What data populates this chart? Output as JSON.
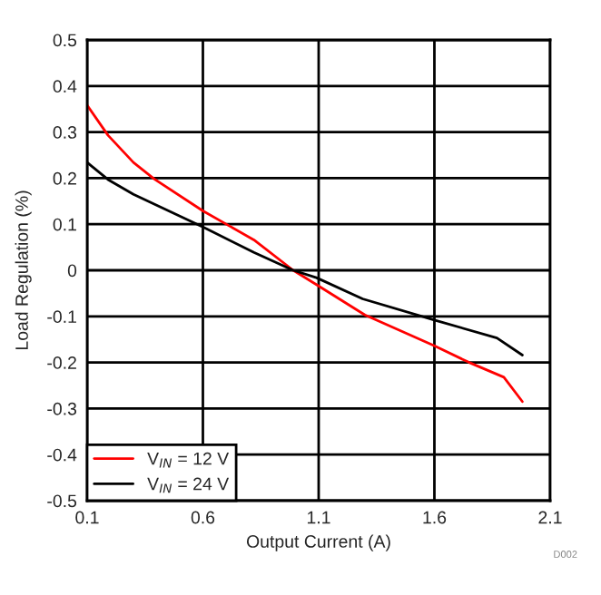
{
  "chart_data": {
    "type": "line",
    "xlabel": "Output Current (A)",
    "ylabel": "Load Regulation (%)",
    "xlim": [
      0.1,
      2.1
    ],
    "xticks": [
      0.1,
      0.6,
      1.1,
      1.6,
      2.1
    ],
    "ylim": [
      -0.5,
      0.5
    ],
    "yticks": [
      -0.5,
      -0.4,
      -0.3,
      -0.2,
      -0.1,
      0,
      0.1,
      0.2,
      0.3,
      0.4,
      0.5
    ],
    "grid": true,
    "legend": "bottom left",
    "marker": "none",
    "line_style": "solid",
    "annotations": [
      "D002"
    ],
    "series": [
      {
        "name": "V$_{IN}$ = 12 V",
        "color": "#ff0000",
        "x": [
          0.1,
          0.19,
          0.3,
          0.39,
          0.6,
          0.82,
          0.99,
          1.09,
          1.3,
          1.6,
          1.75,
          1.9,
          1.98
        ],
        "values": [
          0.358,
          0.293,
          0.234,
          0.198,
          0.129,
          0.066,
          0.0,
          -0.031,
          -0.097,
          -0.164,
          -0.2,
          -0.232,
          -0.285
        ]
      },
      {
        "name": "V$_{IN}$ = 24 V",
        "color": "#000000",
        "x": [
          0.1,
          0.19,
          0.3,
          0.6,
          0.82,
          0.99,
          1.09,
          1.29,
          1.6,
          1.87,
          1.98
        ],
        "values": [
          0.234,
          0.197,
          0.165,
          0.094,
          0.039,
          0.0,
          -0.016,
          -0.062,
          -0.108,
          -0.147,
          -0.184
        ]
      }
    ]
  }
}
